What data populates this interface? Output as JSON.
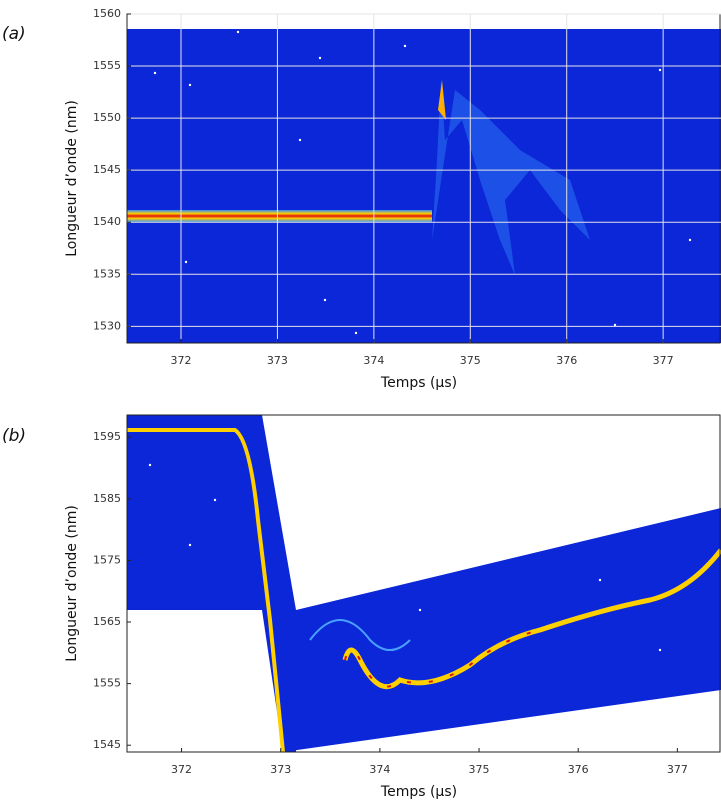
{
  "chart_data": [
    {
      "type": "spectrogram",
      "title": "(a)",
      "x_label": "Temps (µs)",
      "y_label": "Longueur d’onde (nm)",
      "xlim": [
        371.44,
        377.6
      ],
      "ylim": [
        1528.4,
        1560
      ],
      "xticks": [
        372,
        373,
        374,
        375,
        376,
        377
      ],
      "yticks": [
        1530,
        1535,
        1540,
        1545,
        1550,
        1555,
        1560
      ],
      "grid": true
    },
    {
      "type": "spectrogram",
      "title": "(b)",
      "x_label": "Temps (µs)",
      "y_label": "Longueur d’onde (nm)",
      "xlim": [
        371.45,
        377.44
      ],
      "ylim": [
        1543.9,
        1598.6
      ],
      "xticks": [
        372,
        373,
        374,
        375,
        376,
        377
      ],
      "yticks": [
        1545,
        1555,
        1565,
        1575,
        1585,
        1595
      ],
      "grid": false
    }
  ]
}
